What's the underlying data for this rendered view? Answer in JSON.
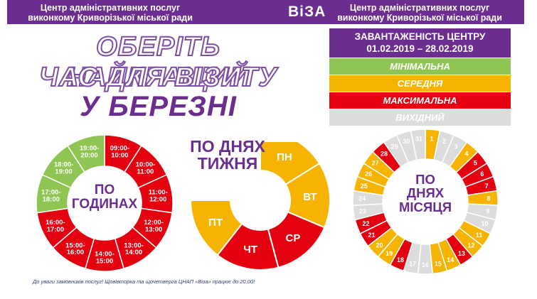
{
  "header": {
    "org_left_line1": "Центр адміністративних послуг",
    "org_left_line2": "виконкому Криворізької міської ради",
    "logo": "ВіЗА",
    "org_right_line1": "Центр адміністративних послуг",
    "org_right_line2": "виконкому Криворізької міської ради"
  },
  "title": {
    "line1": "ОБЕРІТЬ НАЙКРАЩИЙ",
    "line2": "ЧАС ДЛЯ ВІЗИТУ",
    "line3": "У БЕРЕЗНІ"
  },
  "legend": {
    "heading_line1": "ЗАВАНТАЖЕНІСТЬ ЦЕНТРУ",
    "heading_line2": "01.02.2019 – 28.02.2019",
    "items": [
      {
        "label": "МІНІМАЛЬНА",
        "color": "#8fc653",
        "text_color": "#ffffff"
      },
      {
        "label": "СЕРЕДНЯ",
        "color": "#f6b400",
        "text_color": "#ffffff"
      },
      {
        "label": "МАКСИМАЛЬНА",
        "color": "#e3000f",
        "text_color": "#ffffff"
      },
      {
        "label": "ВИХІДНИЙ",
        "color": "#dcdcdc",
        "text_color": "#ffffff"
      }
    ]
  },
  "colors": {
    "min": "#8fc653",
    "mid": "#f6b400",
    "max": "#e3000f",
    "off": "#dcdcdc",
    "brand": "#6b2d8f"
  },
  "hours": {
    "title_line1": "ПО",
    "title_line2": "ГОДИНАХ",
    "segments": [
      {
        "label": "09:00-\n10:00",
        "level": "max"
      },
      {
        "label": "10:00-\n11:00",
        "level": "max"
      },
      {
        "label": "11:00-\n12:00",
        "level": "max"
      },
      {
        "label": "12:00-\n13:00",
        "level": "max"
      },
      {
        "label": "13:00-\n14:00",
        "level": "max"
      },
      {
        "label": "14:00-\n15:00",
        "level": "max"
      },
      {
        "label": "15:00-\n16:00",
        "level": "max"
      },
      {
        "label": "16:00-\n17:00",
        "level": "max"
      },
      {
        "label": "17:00-\n18:00",
        "level": "min"
      },
      {
        "label": "18:00-\n19:00",
        "level": "min"
      },
      {
        "label": "19:00-\n20:00",
        "level": "min"
      }
    ]
  },
  "weekdays": {
    "title_line1": "ПО ДНЯХ",
    "title_line2": "ТИЖНЯ",
    "segments": [
      {
        "label": "ПН",
        "level": "mid"
      },
      {
        "label": "ВТ",
        "level": "mid"
      },
      {
        "label": "СР",
        "level": "max"
      },
      {
        "label": "ЧТ",
        "level": "max"
      },
      {
        "label": "ПТ",
        "level": "mid"
      }
    ]
  },
  "month": {
    "title_line1": "ПО",
    "title_line2": "ДНЯХ",
    "title_line3": "МІСЯЦЯ",
    "days": [
      {
        "day": "1",
        "level": "mid"
      },
      {
        "day": "2",
        "level": "off"
      },
      {
        "day": "3",
        "level": "off"
      },
      {
        "day": "4",
        "level": "mid"
      },
      {
        "day": "5",
        "level": "max"
      },
      {
        "day": "6",
        "level": "max"
      },
      {
        "day": "7",
        "level": "max"
      },
      {
        "day": "8",
        "level": "mid"
      },
      {
        "day": "9",
        "level": "off"
      },
      {
        "day": "10",
        "level": "off"
      },
      {
        "day": "11",
        "level": "mid"
      },
      {
        "day": "12",
        "level": "mid"
      },
      {
        "day": "13",
        "level": "max"
      },
      {
        "day": "14",
        "level": "mid"
      },
      {
        "day": "15",
        "level": "mid"
      },
      {
        "day": "16",
        "level": "off"
      },
      {
        "day": "17",
        "level": "off"
      },
      {
        "day": "18",
        "level": "max"
      },
      {
        "day": "19",
        "level": "mid"
      },
      {
        "day": "20",
        "level": "mid"
      },
      {
        "day": "21",
        "level": "max"
      },
      {
        "day": "22",
        "level": "max"
      },
      {
        "day": "23",
        "level": "off"
      },
      {
        "day": "24",
        "level": "off"
      },
      {
        "day": "25",
        "level": "mid"
      },
      {
        "day": "26",
        "level": "mid"
      },
      {
        "day": "27",
        "level": "mid"
      },
      {
        "day": "28",
        "level": "max"
      },
      {
        "day": "29",
        "level": "off"
      },
      {
        "day": "30",
        "level": "off"
      },
      {
        "day": "31",
        "level": "off"
      }
    ]
  },
  "footnote": "До уваги замовників послуг!  Щовівторка та щочетверга ЦНАП «Віза» працює до 20.00!"
}
